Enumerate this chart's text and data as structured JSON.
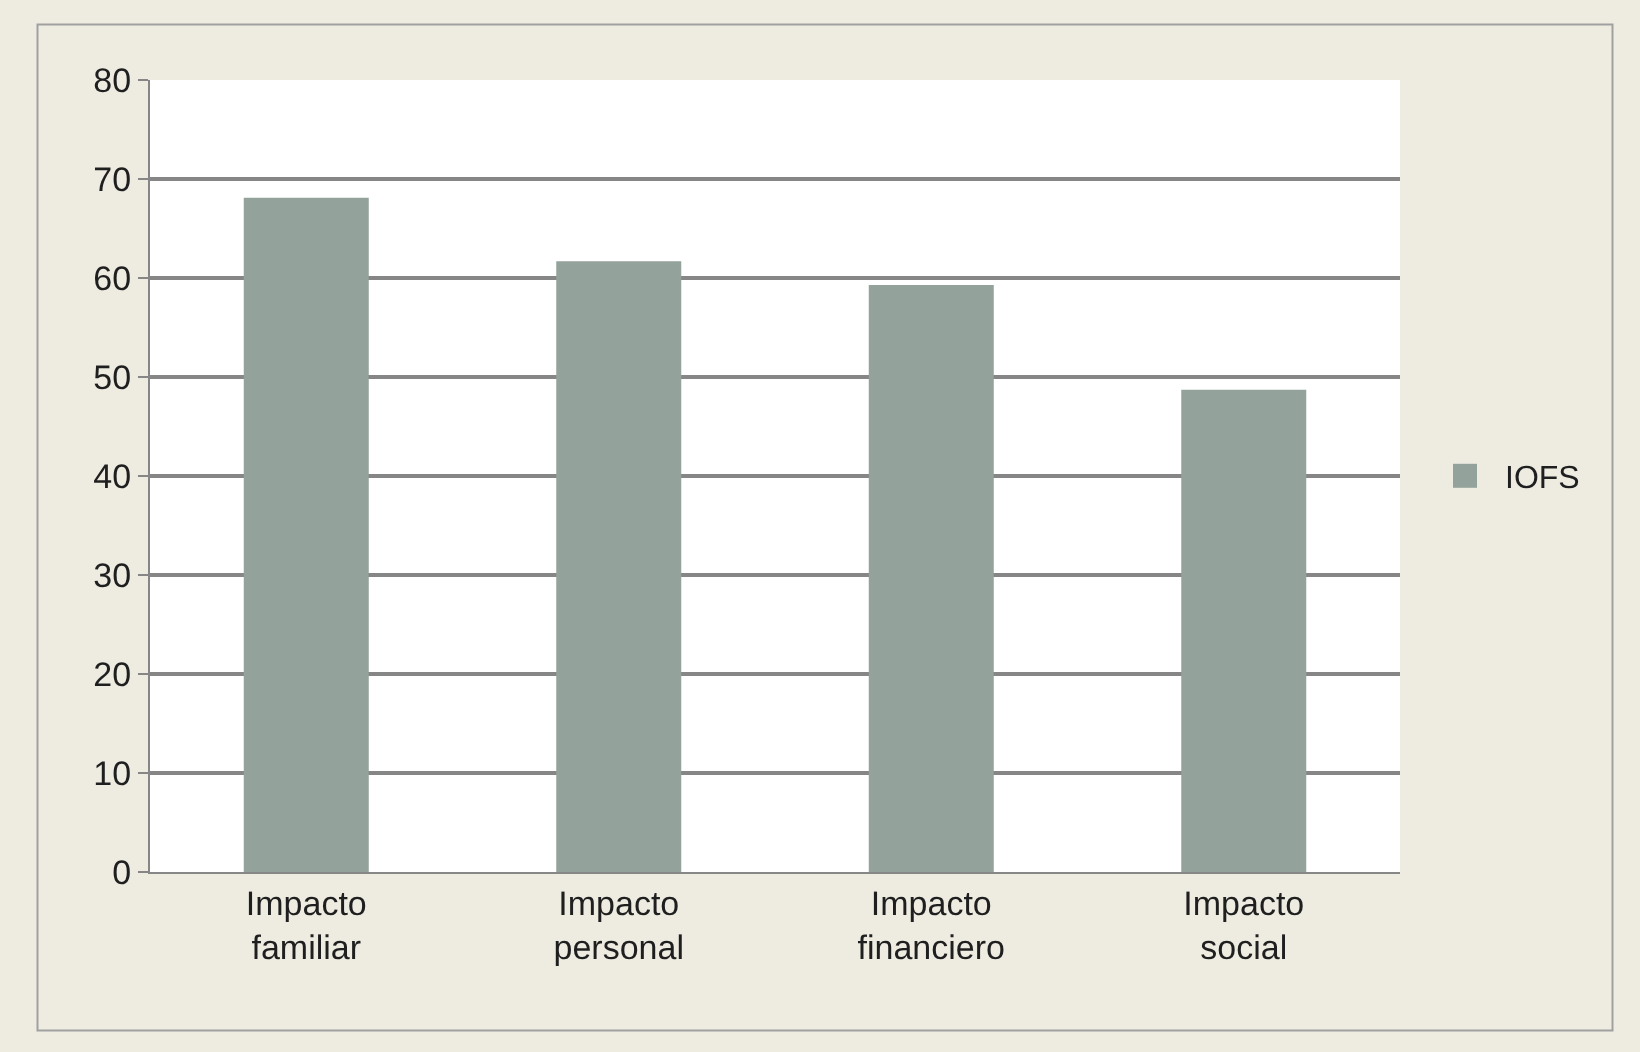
{
  "chart_data": {
    "type": "bar",
    "categories": [
      "Impacto familiar",
      "Impacto personal",
      "Impacto financiero",
      "Impacto social"
    ],
    "series": [
      {
        "name": "IOFS",
        "color": "#93a29a",
        "values": [
          68.1,
          61.7,
          59.3,
          48.7
        ]
      }
    ],
    "ylim": [
      0,
      80
    ],
    "yticks": [
      0,
      10,
      20,
      30,
      40,
      50,
      60,
      70,
      80
    ],
    "grid": "y",
    "legend": "right"
  }
}
